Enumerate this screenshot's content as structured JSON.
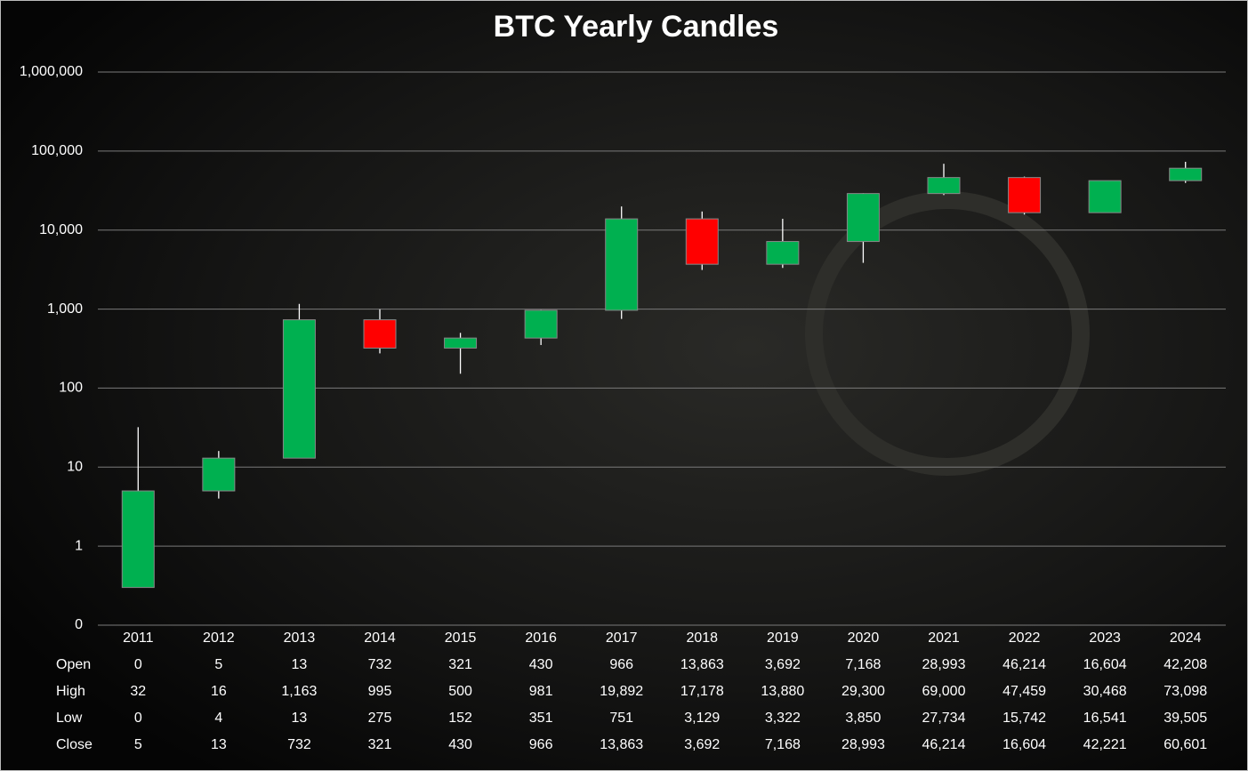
{
  "chart_data": {
    "type": "candlestick",
    "title": "BTC Yearly Candles",
    "categories": [
      "2011",
      "2012",
      "2013",
      "2014",
      "2015",
      "2016",
      "2017",
      "2018",
      "2019",
      "2020",
      "2021",
      "2022",
      "2023",
      "2024"
    ],
    "series": [
      {
        "name": "Open",
        "values": [
          0.3,
          5,
          13,
          732,
          321,
          430,
          966,
          13863,
          3692,
          7168,
          28993,
          46214,
          16604,
          42208
        ],
        "value_labels": [
          "0",
          "5",
          "13",
          "732",
          "321",
          "430",
          "966",
          "13,863",
          "3,692",
          "7,168",
          "28,993",
          "46,214",
          "16,604",
          "42,208"
        ]
      },
      {
        "name": "High",
        "values": [
          32,
          16,
          1163,
          995,
          500,
          981,
          19892,
          17178,
          13880,
          29300,
          69000,
          47459,
          30468,
          73098
        ],
        "value_labels": [
          "32",
          "16",
          "1,163",
          "995",
          "500",
          "981",
          "19,892",
          "17,178",
          "13,880",
          "29,300",
          "69,000",
          "47,459",
          "30,468",
          "73,098"
        ]
      },
      {
        "name": "Low",
        "values": [
          0.3,
          4,
          13,
          275,
          152,
          351,
          751,
          3129,
          3322,
          3850,
          27734,
          15742,
          16541,
          39505
        ],
        "value_labels": [
          "0",
          "4",
          "13",
          "275",
          "152",
          "351",
          "751",
          "3,129",
          "3,322",
          "3,850",
          "27,734",
          "15,742",
          "16,541",
          "39,505"
        ]
      },
      {
        "name": "Close",
        "values": [
          5,
          13,
          732,
          321,
          430,
          966,
          13863,
          3692,
          7168,
          28993,
          46214,
          16604,
          42221,
          60601
        ],
        "value_labels": [
          "5",
          "13",
          "732",
          "321",
          "430",
          "966",
          "13,863",
          "3,692",
          "7,168",
          "28,993",
          "46,214",
          "16,604",
          "42,221",
          "60,601"
        ]
      }
    ],
    "up_color": "#00b050",
    "down_color": "#ff0000",
    "log_scale": true,
    "grid": true,
    "ylim": [
      0.1,
      1000000
    ],
    "yticks": [
      {
        "value": 0.1,
        "label": "0"
      },
      1,
      10,
      {
        "value": 100,
        "label": "100"
      },
      {
        "value": 1000,
        "label": "1,000"
      },
      {
        "value": 10000,
        "label": "10,000"
      },
      {
        "value": 100000,
        "label": "100,000"
      },
      {
        "value": 1000000,
        "label": "1,000,000"
      }
    ]
  }
}
